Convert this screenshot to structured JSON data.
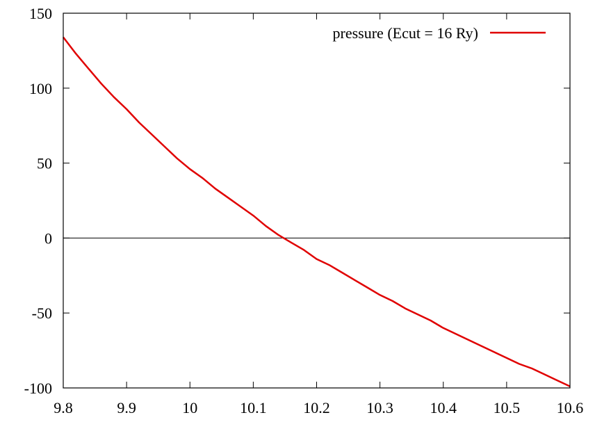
{
  "chart_data": {
    "type": "line",
    "title": "",
    "xlabel": "",
    "ylabel": "",
    "xlim": [
      9.8,
      10.6
    ],
    "ylim": [
      -100,
      150
    ],
    "x_ticks": [
      "9.8",
      "9.9",
      "10",
      "10.1",
      "10.2",
      "10.3",
      "10.4",
      "10.5",
      "10.6"
    ],
    "y_ticks": [
      "150",
      "100",
      "50",
      "0",
      "-50",
      "-100"
    ],
    "grid": false,
    "zero_line": true,
    "legend": {
      "position": "top-right"
    },
    "series": [
      {
        "name": "pressure (Ecut = 16 Ry)",
        "color": "#e00000",
        "x": [
          9.8,
          9.82,
          9.84,
          9.86,
          9.88,
          9.9,
          9.92,
          9.94,
          9.96,
          9.98,
          10.0,
          10.02,
          10.04,
          10.06,
          10.08,
          10.1,
          10.12,
          10.14,
          10.16,
          10.18,
          10.2,
          10.22,
          10.24,
          10.26,
          10.28,
          10.3,
          10.32,
          10.34,
          10.36,
          10.38,
          10.4,
          10.42,
          10.44,
          10.46,
          10.48,
          10.5,
          10.52,
          10.54,
          10.56,
          10.58,
          10.6
        ],
        "y": [
          134,
          123,
          113,
          103,
          94,
          86,
          77,
          69,
          61,
          53,
          46,
          40,
          33,
          27,
          21,
          15,
          8,
          2,
          -3,
          -8,
          -14,
          -18,
          -23,
          -28,
          -33,
          -38,
          -42,
          -47,
          -51,
          -55,
          -60,
          -64,
          -68,
          -72,
          -76,
          -80,
          -84,
          -87,
          -91,
          -95,
          -99
        ]
      }
    ]
  }
}
